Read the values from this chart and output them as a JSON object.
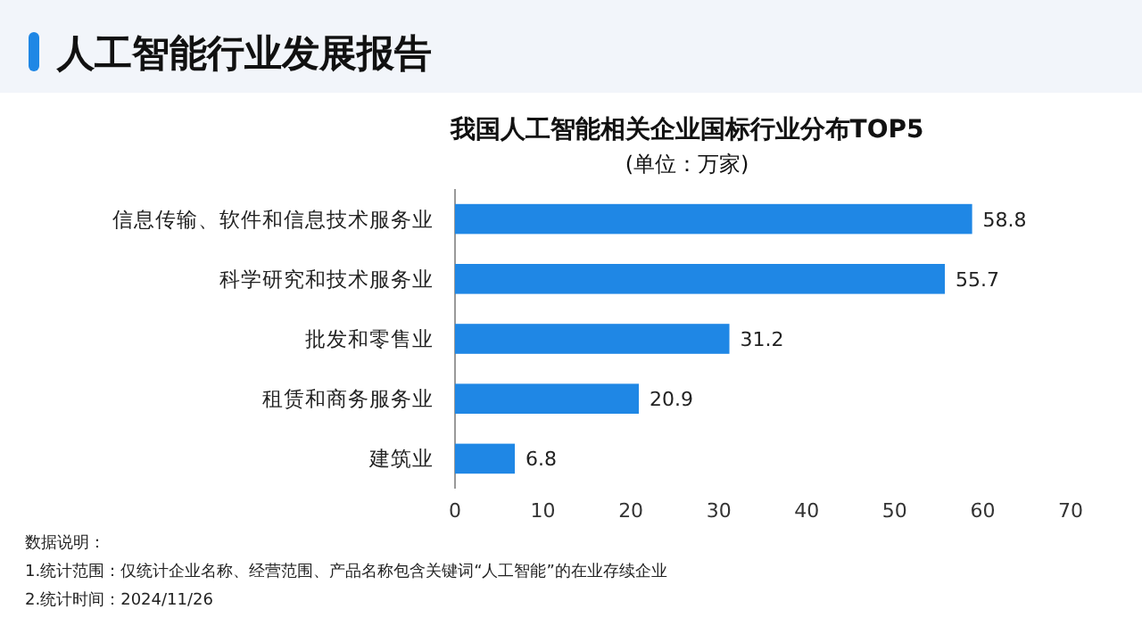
{
  "chart_data": {
    "type": "bar",
    "orientation": "horizontal",
    "title": "人工智能行业发展报告",
    "subtitle": "我国人工智能相关企业国标行业分布TOP5",
    "categories": [
      "信息传输、软件和信息技术服务业",
      "科学研究和技术服务业",
      "批发和零售业",
      "租赁和商务服务业",
      "建筑业"
    ],
    "values": [
      58.8,
      55.7,
      31.2,
      20.9,
      6.8
    ],
    "color": "#1f87e5",
    "xlim": [
      0,
      70
    ],
    "xticks": [
      0,
      10,
      20,
      30,
      40,
      50,
      60,
      70
    ],
    "data_labels": true,
    "grid": false,
    "annotations": [
      "(单位：万家)",
      "数据说明：",
      "1.统计范围：仅统计企业名称、经营范围、产品名称包含关键词“人工智能”的在业存续企业",
      "2.统计时间：2024/11/26"
    ]
  }
}
